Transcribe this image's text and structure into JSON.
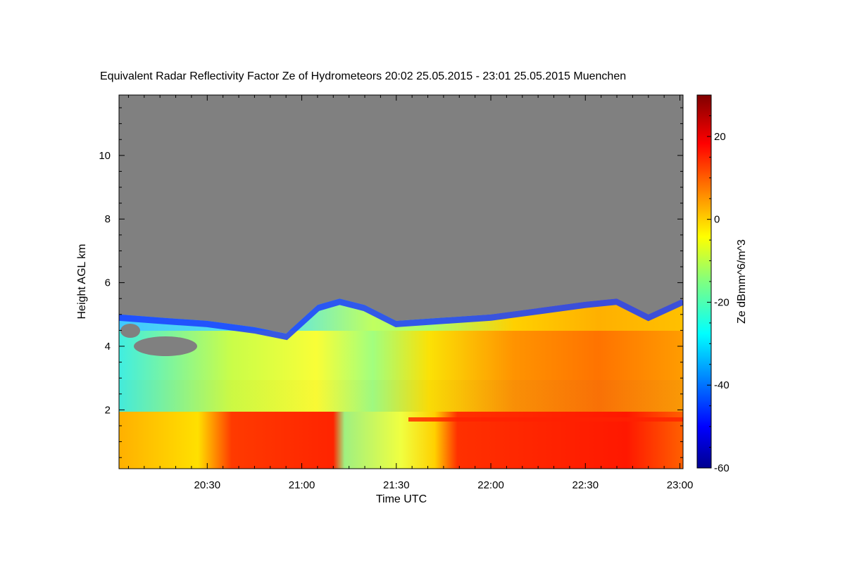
{
  "chart_data": {
    "type": "heatmap",
    "title": "Equivalent Radar Reflectivity Factor Ze of Hydrometeors   20:02 25.05.2015 - 23:01 25.05.2015 Muenchen",
    "xlabel": "Time UTC",
    "ylabel": "Height AGL km",
    "colorbar_label": "Ze dBmm^6/m^3",
    "x_range": [
      "20:02",
      "23:01"
    ],
    "x_ticks": [
      "20:30",
      "21:00",
      "21:30",
      "22:00",
      "22:30",
      "23:00"
    ],
    "y_range": [
      0.15,
      11.9
    ],
    "y_ticks": [
      "2",
      "4",
      "6",
      "8",
      "10"
    ],
    "colorbar_range": [
      -60,
      30
    ],
    "colorbar_ticks": [
      "20",
      "0",
      "-20",
      "-40",
      "-60"
    ],
    "no_signal_color": "#808080",
    "cloud_top_km": [
      {
        "time": "20:02",
        "height": 5.0
      },
      {
        "time": "20:15",
        "height": 4.9
      },
      {
        "time": "20:30",
        "height": 4.8
      },
      {
        "time": "20:45",
        "height": 4.6
      },
      {
        "time": "20:55",
        "height": 4.4
      },
      {
        "time": "21:05",
        "height": 5.3
      },
      {
        "time": "21:12",
        "height": 5.5
      },
      {
        "time": "21:20",
        "height": 5.3
      },
      {
        "time": "21:30",
        "height": 4.8
      },
      {
        "time": "21:45",
        "height": 4.9
      },
      {
        "time": "22:00",
        "height": 5.0
      },
      {
        "time": "22:15",
        "height": 5.2
      },
      {
        "time": "22:30",
        "height": 5.4
      },
      {
        "time": "22:40",
        "height": 5.5
      },
      {
        "time": "22:50",
        "height": 5.0
      },
      {
        "time": "23:01",
        "height": 5.5
      }
    ],
    "melting_layer_km": 1.7,
    "features": [
      {
        "time_start": "20:02",
        "time_end": "20:30",
        "height_bottom": 3.5,
        "height_top": 5.0,
        "ze_dbz": -35
      },
      {
        "time_start": "20:30",
        "time_end": "21:15",
        "height_bottom": 0.15,
        "height_top": 1.75,
        "ze_dbz": 20
      },
      {
        "time_start": "21:15",
        "time_end": "21:40",
        "height_bottom": 0.15,
        "height_top": 1.8,
        "ze_dbz": -10
      },
      {
        "time_start": "21:45",
        "time_end": "22:50",
        "height_bottom": 0.15,
        "height_top": 1.75,
        "ze_dbz": 22
      },
      {
        "time_start": "21:40",
        "time_end": "23:01",
        "height_bottom": 2.0,
        "height_top": 4.5,
        "ze_dbz": 8
      }
    ]
  }
}
